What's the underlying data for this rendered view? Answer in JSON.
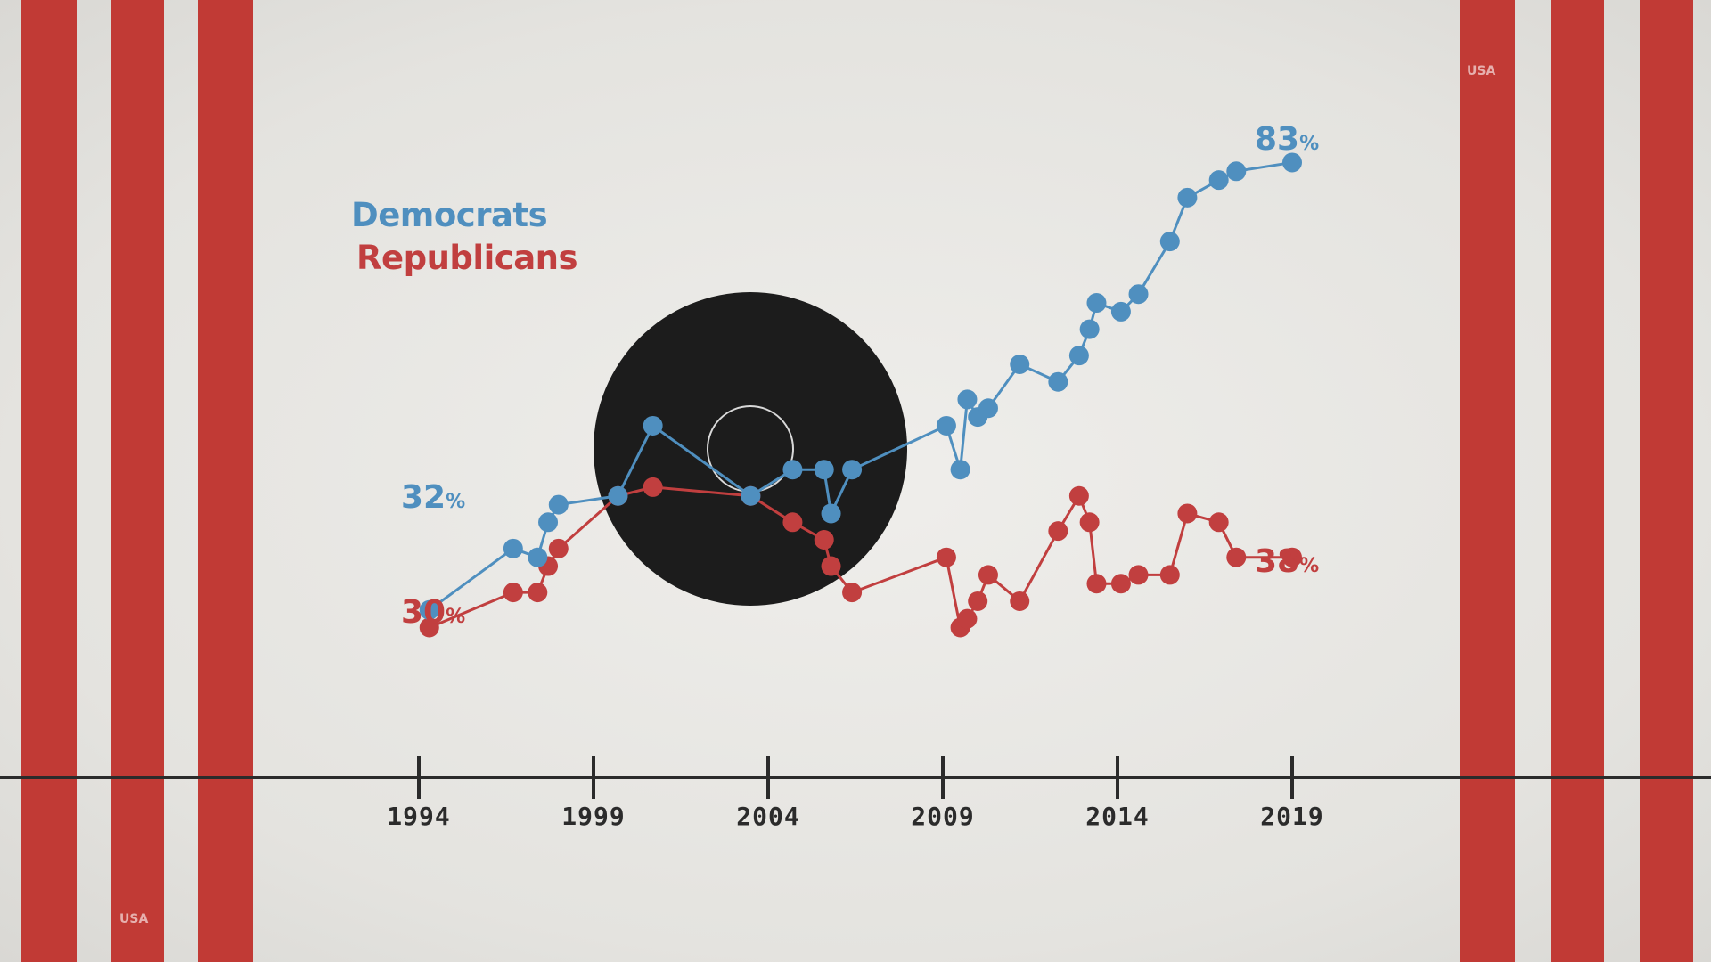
{
  "legend": {
    "democrats": "Democrats",
    "republicans": "Republicans"
  },
  "stamps": {
    "top": "USA",
    "bottom": "USA"
  },
  "colors": {
    "democrats": "#4f8fbf",
    "republicans": "#c13f3f",
    "stripe": "#c13a35",
    "axis": "#2b2b2b",
    "disc": "#1c1c1c"
  },
  "chart_data": {
    "type": "line",
    "title": "",
    "xlabel": "",
    "ylabel": "",
    "x_ticks": [
      "1994",
      "1999",
      "2004",
      "2009",
      "2014",
      "2019"
    ],
    "xlim": [
      1994,
      2019
    ],
    "ylim": [
      0,
      100
    ],
    "grid": false,
    "legend_position": "top-left",
    "series": [
      {
        "name": "Democrats",
        "x": [
          1994.3,
          1996.7,
          1997.4,
          1997.7,
          1998.0,
          1999.7,
          2000.7,
          2003.5,
          2004.7,
          2005.6,
          2005.8,
          2006.4,
          2009.1,
          2009.5,
          2009.7,
          2010.0,
          2010.3,
          2011.2,
          2012.3,
          2012.9,
          2013.2,
          2013.4,
          2014.1,
          2014.6,
          2015.5,
          2016.0,
          2016.9,
          2017.4,
          2019.0
        ],
        "y": [
          32,
          39,
          38,
          42,
          44,
          45,
          53,
          45,
          48,
          48,
          43,
          48,
          53,
          48,
          56,
          54,
          55,
          60,
          58,
          61,
          64,
          67,
          66,
          68,
          74,
          79,
          81,
          82,
          83
        ]
      },
      {
        "name": "Republicans",
        "x": [
          1994.3,
          1996.7,
          1997.4,
          1997.7,
          1998.0,
          1999.7,
          2000.7,
          2003.5,
          2004.7,
          2005.6,
          2005.8,
          2006.4,
          2009.1,
          2009.5,
          2009.7,
          2010.0,
          2010.3,
          2011.2,
          2012.3,
          2012.9,
          2013.2,
          2013.4,
          2014.1,
          2014.6,
          2015.5,
          2016.0,
          2016.9,
          2017.4,
          2019.0
        ],
        "y": [
          30,
          34,
          34,
          37,
          39,
          45,
          46,
          45,
          42,
          40,
          37,
          34,
          38,
          30,
          31,
          33,
          36,
          33,
          41,
          45,
          42,
          35,
          35,
          36,
          36,
          43,
          42,
          38,
          38
        ]
      }
    ],
    "annotations": {
      "dem_start": {
        "value": "32",
        "unit": "%"
      },
      "rep_start": {
        "value": "30",
        "unit": "%"
      },
      "dem_end": {
        "value": "83",
        "unit": "%"
      },
      "rep_end": {
        "value": "38",
        "unit": "%"
      }
    }
  }
}
